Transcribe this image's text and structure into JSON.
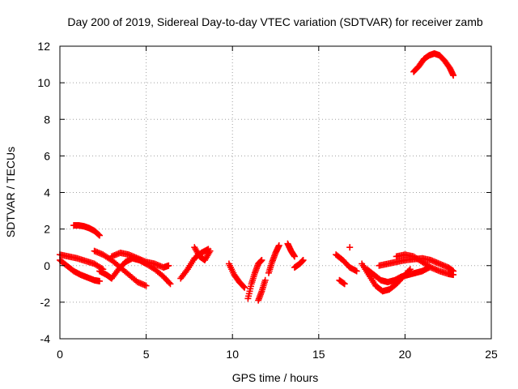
{
  "chart_data": {
    "type": "scatter",
    "title": "Day 200 of 2019, Sidereal Day-to-day VTEC variation (SDTVAR) for receiver zamb",
    "xlabel": "GPS time / hours",
    "ylabel": "SDTVAR / TECUs",
    "xlim": [
      0,
      25
    ],
    "ylim": [
      -4,
      12
    ],
    "xticks": [
      0,
      5,
      10,
      15,
      20,
      25
    ],
    "yticks": [
      -4,
      -2,
      0,
      2,
      4,
      6,
      8,
      10,
      12
    ],
    "grid": true,
    "marker": "plus",
    "color": "#ff0000",
    "segments": [
      {
        "name": "arc-a",
        "x": [
          0,
          0.5,
          1.0,
          1.5,
          2.0,
          2.5
        ],
        "y": [
          0.6,
          0.5,
          0.4,
          0.25,
          0.1,
          -0.2
        ]
      },
      {
        "name": "arc-b",
        "x": [
          0,
          0.4,
          0.8,
          1.2,
          1.6,
          2.0,
          2.3
        ],
        "y": [
          0.3,
          0.0,
          -0.3,
          -0.5,
          -0.65,
          -0.8,
          -0.85
        ]
      },
      {
        "name": "arc-c",
        "x": [
          0.8,
          1.1,
          1.4,
          1.7,
          2.0,
          2.3
        ],
        "y": [
          2.2,
          2.2,
          2.15,
          2.05,
          1.9,
          1.65
        ]
      },
      {
        "name": "arc-d",
        "x": [
          2.3,
          2.7,
          3.0,
          3.4,
          3.8,
          4.2,
          4.6,
          5.0,
          5.5,
          6.0,
          6.4
        ],
        "y": [
          -0.3,
          -0.5,
          -0.7,
          -0.2,
          0.2,
          0.4,
          0.3,
          0.1,
          -0.2,
          -0.6,
          -1.0
        ]
      },
      {
        "name": "arc-e",
        "x": [
          2.0,
          2.5,
          3.0,
          3.5,
          4.0,
          4.5,
          5.0
        ],
        "y": [
          0.8,
          0.6,
          0.3,
          -0.1,
          -0.5,
          -0.9,
          -1.1
        ]
      },
      {
        "name": "arc-f",
        "x": [
          3.0,
          3.5,
          4.0,
          4.5,
          5.0,
          5.5,
          6.0,
          6.3
        ],
        "y": [
          0.5,
          0.7,
          0.6,
          0.4,
          0.2,
          0.1,
          -0.1,
          0.0
        ]
      },
      {
        "name": "arc-g",
        "x": [
          7.0,
          7.4,
          7.8,
          8.2,
          8.6
        ],
        "y": [
          -0.7,
          -0.2,
          0.4,
          0.7,
          0.9
        ]
      },
      {
        "name": "arc-h",
        "x": [
          7.8,
          8.1,
          8.4,
          8.7
        ],
        "y": [
          1.0,
          0.5,
          0.3,
          0.8
        ]
      },
      {
        "name": "arc-i",
        "x": [
          9.8,
          10.1,
          10.4,
          10.7
        ],
        "y": [
          0.1,
          -0.5,
          -0.9,
          -1.2
        ]
      },
      {
        "name": "arc-j",
        "x": [
          10.9,
          11.1,
          11.3,
          11.5,
          11.7
        ],
        "y": [
          -1.8,
          -1.0,
          -0.4,
          0.1,
          0.3
        ]
      },
      {
        "name": "arc-k",
        "x": [
          11.5,
          11.7,
          11.9
        ],
        "y": [
          -1.9,
          -1.4,
          -0.8
        ]
      },
      {
        "name": "arc-l",
        "x": [
          12.1,
          12.3,
          12.5,
          12.7
        ],
        "y": [
          -0.4,
          0.2,
          0.7,
          1.1
        ]
      },
      {
        "name": "arc-m",
        "x": [
          13.2,
          13.4,
          13.6
        ],
        "y": [
          1.2,
          0.8,
          0.5
        ]
      },
      {
        "name": "arc-n",
        "x": [
          13.6,
          13.9,
          14.1
        ],
        "y": [
          -0.1,
          0.1,
          0.3
        ]
      },
      {
        "name": "arc-o",
        "x": [
          16.0,
          16.4,
          16.8,
          17.2
        ],
        "y": [
          0.6,
          0.3,
          -0.1,
          -0.3
        ]
      },
      {
        "name": "arc-p",
        "x": [
          16.2,
          16.5
        ],
        "y": [
          -0.8,
          -1.0
        ]
      },
      {
        "name": "arc-q",
        "x": [
          16.8
        ],
        "y": [
          1.0
        ]
      },
      {
        "name": "arc-r",
        "x": [
          17.5,
          17.9,
          18.3,
          18.7,
          19.1,
          19.5,
          19.9,
          20.3
        ],
        "y": [
          0.1,
          -0.5,
          -1.1,
          -1.4,
          -1.3,
          -1.0,
          -0.6,
          -0.2
        ]
      },
      {
        "name": "arc-s",
        "x": [
          17.8,
          18.2,
          18.6,
          19.0,
          19.4,
          19.8,
          20.2,
          20.6,
          21.0,
          21.4
        ],
        "y": [
          -0.2,
          -0.5,
          -0.8,
          -0.9,
          -0.8,
          -0.6,
          -0.5,
          -0.4,
          -0.3,
          -0.1
        ]
      },
      {
        "name": "arc-t",
        "x": [
          18.5,
          19.0,
          19.5,
          20.0,
          20.5,
          21.0,
          21.5,
          22.0,
          22.5,
          22.8
        ],
        "y": [
          0.0,
          0.1,
          0.2,
          0.3,
          0.35,
          0.4,
          0.3,
          0.1,
          -0.1,
          -0.3
        ]
      },
      {
        "name": "arc-u",
        "x": [
          19.5,
          20.0,
          20.5,
          21.0,
          21.5,
          22.0,
          22.5,
          22.8
        ],
        "y": [
          0.5,
          0.6,
          0.5,
          0.2,
          -0.1,
          -0.3,
          -0.45,
          -0.5
        ]
      },
      {
        "name": "arc-v",
        "x": [
          20.5,
          20.8,
          21.1,
          21.4,
          21.7,
          22.0,
          22.3,
          22.6,
          22.8
        ],
        "y": [
          10.6,
          10.9,
          11.3,
          11.5,
          11.6,
          11.5,
          11.2,
          10.8,
          10.4
        ]
      }
    ]
  }
}
